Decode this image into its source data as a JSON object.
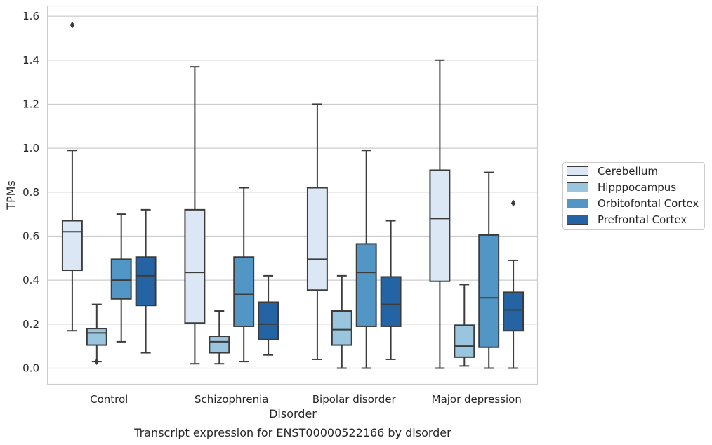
{
  "chart_data": {
    "type": "box",
    "caption": "Transcript expression for ENST00000522166 by disorder",
    "xlabel": "Disorder",
    "ylabel": "TPMs",
    "ylim": [
      -0.075,
      1.645
    ],
    "yticks": [
      "0.0",
      "0.2",
      "0.4",
      "0.6",
      "0.8",
      "1.0",
      "1.2",
      "1.4",
      "1.6"
    ],
    "categories": [
      "Control",
      "Schizophrenia",
      "Bipolar disorder",
      "Major depression"
    ],
    "grid": "horizontal",
    "legend_position": "right",
    "series": [
      {
        "name": "Cerebellum",
        "color": "#dbe7f4",
        "boxes": [
          {
            "whislo": 0.17,
            "q1": 0.445,
            "med": 0.62,
            "q3": 0.67,
            "whishi": 0.99,
            "fliers": [
              1.56
            ]
          },
          {
            "whislo": 0.02,
            "q1": 0.205,
            "med": 0.435,
            "q3": 0.72,
            "whishi": 1.37,
            "fliers": []
          },
          {
            "whislo": 0.04,
            "q1": 0.355,
            "med": 0.495,
            "q3": 0.82,
            "whishi": 1.2,
            "fliers": []
          },
          {
            "whislo": 0.0,
            "q1": 0.395,
            "med": 0.68,
            "q3": 0.9,
            "whishi": 1.4,
            "fliers": []
          }
        ]
      },
      {
        "name": "Hipppocampus",
        "color": "#9ac5de",
        "boxes": [
          {
            "whislo": 0.03,
            "q1": 0.105,
            "med": 0.16,
            "q3": 0.18,
            "whishi": 0.29,
            "fliers": [
              0.03
            ]
          },
          {
            "whislo": 0.02,
            "q1": 0.07,
            "med": 0.12,
            "q3": 0.145,
            "whishi": 0.26,
            "fliers": []
          },
          {
            "whislo": 0.0,
            "q1": 0.105,
            "med": 0.175,
            "q3": 0.26,
            "whishi": 0.42,
            "fliers": []
          },
          {
            "whislo": 0.01,
            "q1": 0.05,
            "med": 0.1,
            "q3": 0.195,
            "whishi": 0.38,
            "fliers": []
          }
        ]
      },
      {
        "name": "Orbitofontal Cortex",
        "color": "#5296c6",
        "boxes": [
          {
            "whislo": 0.12,
            "q1": 0.315,
            "med": 0.4,
            "q3": 0.495,
            "whishi": 0.7,
            "fliers": []
          },
          {
            "whislo": 0.03,
            "q1": 0.19,
            "med": 0.335,
            "q3": 0.505,
            "whishi": 0.82,
            "fliers": []
          },
          {
            "whislo": 0.0,
            "q1": 0.19,
            "med": 0.435,
            "q3": 0.565,
            "whishi": 0.99,
            "fliers": []
          },
          {
            "whislo": 0.0,
            "q1": 0.095,
            "med": 0.32,
            "q3": 0.605,
            "whishi": 0.89,
            "fliers": []
          }
        ]
      },
      {
        "name": "Prefrontal Cortex",
        "color": "#2464a4",
        "boxes": [
          {
            "whislo": 0.07,
            "q1": 0.285,
            "med": 0.42,
            "q3": 0.505,
            "whishi": 0.72,
            "fliers": []
          },
          {
            "whislo": 0.06,
            "q1": 0.13,
            "med": 0.2,
            "q3": 0.3,
            "whishi": 0.42,
            "fliers": []
          },
          {
            "whislo": 0.04,
            "q1": 0.19,
            "med": 0.29,
            "q3": 0.415,
            "whishi": 0.67,
            "fliers": []
          },
          {
            "whislo": 0.0,
            "q1": 0.17,
            "med": 0.265,
            "q3": 0.345,
            "whishi": 0.49,
            "fliers": [
              0.75
            ]
          }
        ]
      }
    ]
  }
}
